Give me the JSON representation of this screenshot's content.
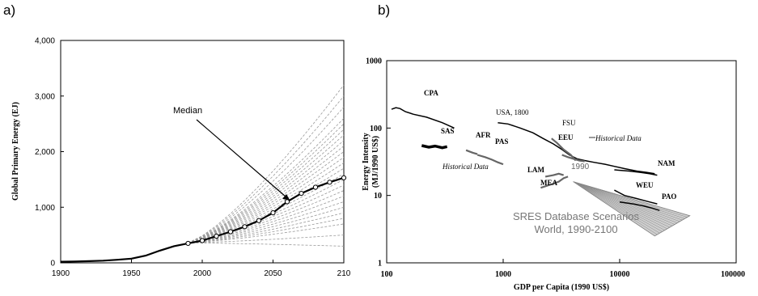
{
  "chart_data": [
    {
      "panel_label": "a)",
      "type": "line",
      "title": "",
      "xlabel": "",
      "ylabel": "Global Primary Energy (EJ)",
      "xlim": [
        1900,
        2100
      ],
      "ylim": [
        0,
        4000
      ],
      "x_ticks": [
        "1900",
        "1950",
        "2000",
        "2050",
        "210"
      ],
      "y_ticks": [
        "0",
        "1,000",
        "2,000",
        "3,000",
        "4,000"
      ],
      "grid": false,
      "annotation": "Median",
      "annotation_point": [
        2060,
        1160
      ],
      "series": [
        {
          "name": "Median",
          "x": [
            1900,
            1910,
            1920,
            1930,
            1940,
            1950,
            1960,
            1970,
            1980,
            1990,
            2000,
            2010,
            2020,
            2030,
            2040,
            2050,
            2060,
            2070,
            2080,
            2090,
            2100
          ],
          "y": [
            20,
            25,
            30,
            40,
            55,
            75,
            130,
            220,
            300,
            350,
            400,
            480,
            560,
            650,
            760,
            900,
            1100,
            1250,
            1360,
            1450,
            1530
          ]
        }
      ],
      "scenario_endpoints_2100": [
        300,
        500,
        700,
        800,
        900,
        1000,
        1100,
        1200,
        1300,
        1400,
        1500,
        1600,
        1700,
        1800,
        1900,
        2000,
        2100,
        2200,
        2300,
        2400,
        2500,
        2600,
        2800,
        3000,
        3200
      ]
    },
    {
      "panel_label": "b)",
      "type": "line",
      "title": "",
      "xlabel": "GDP per Capita (1990 US$)",
      "ylabel": "Energy Intensity\n(MJ/1990 US$)",
      "x_scale": "log",
      "y_scale": "log",
      "xlim": [
        100,
        100000
      ],
      "ylim": [
        1,
        1000
      ],
      "x_ticks": [
        "100",
        "1000",
        "10000",
        "100000"
      ],
      "y_ticks": [
        "1",
        "10",
        "100",
        "1000"
      ],
      "grid": false,
      "series": [
        {
          "name": "CPA",
          "x": [
            110,
            120,
            130,
            145,
            170,
            220,
            300,
            380
          ],
          "y": [
            190,
            200,
            195,
            175,
            160,
            145,
            120,
            100
          ]
        },
        {
          "name": "SAS",
          "x": [
            200,
            230,
            260,
            300,
            330
          ],
          "y": [
            55,
            52,
            54,
            51,
            53
          ]
        },
        {
          "name": "AFR",
          "x": [
            480,
            510,
            550,
            600
          ],
          "y": [
            47,
            45,
            43,
            41
          ]
        },
        {
          "name": "PAS",
          "x": [
            600,
            700,
            800,
            900,
            1000
          ],
          "y": [
            40,
            37,
            34,
            31,
            29
          ]
        },
        {
          "name": "USA, 1800",
          "x": [
            900,
            1100,
            1400,
            1800,
            2200,
            2700,
            3200,
            3700,
            4300,
            5000,
            6000,
            7500,
            9000,
            11000,
            14000,
            17000,
            20000
          ],
          "y": [
            120,
            115,
            100,
            85,
            70,
            58,
            48,
            40,
            35,
            33,
            31,
            29,
            27,
            25,
            23,
            22,
            21
          ]
        },
        {
          "name": "FSU",
          "x": [
            2600,
            2900,
            3300,
            3800,
            4200
          ],
          "y": [
            70,
            60,
            48,
            40,
            33
          ]
        },
        {
          "name": "EEU",
          "x": [
            3200,
            3600,
            4000,
            4500,
            5000
          ],
          "y": [
            40,
            37,
            35,
            33,
            32
          ]
        },
        {
          "name": "NAM",
          "x": [
            9000,
            12000,
            15000,
            18000,
            21000
          ],
          "y": [
            24,
            23,
            22,
            21,
            20
          ]
        },
        {
          "name": "LAM",
          "x": [
            2300,
            2700,
            3000,
            3300
          ],
          "y": [
            19,
            20,
            21,
            20
          ]
        },
        {
          "name": "MEA",
          "x": [
            2100,
            2400,
            2700,
            3000,
            3300,
            3600
          ],
          "y": [
            13,
            14,
            15,
            16,
            18,
            19
          ]
        },
        {
          "name": "WEU",
          "x": [
            9000,
            11000,
            14000,
            18000,
            21000
          ],
          "y": [
            12,
            10,
            9,
            8,
            7.5
          ]
        },
        {
          "name": "PAO",
          "x": [
            10000,
            13000,
            16000,
            19000,
            22000
          ],
          "y": [
            8,
            7.5,
            7,
            6.5,
            6
          ]
        }
      ],
      "scenario_fan": {
        "origin": [
          4000,
          16
        ],
        "low": [
          20000,
          2.5
        ],
        "high": [
          40000,
          5
        ]
      },
      "annotations": [
        "Historical Data",
        "Historical Data",
        "1990",
        "SRES Database Scenarios\nWorld, 1990-2100"
      ]
    }
  ]
}
